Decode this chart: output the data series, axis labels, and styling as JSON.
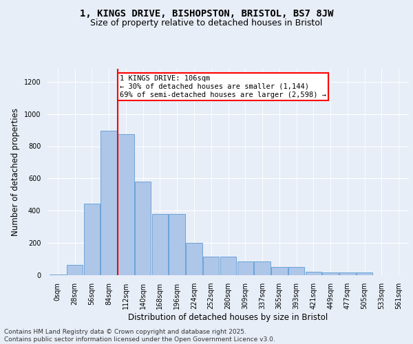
{
  "title_line1": "1, KINGS DRIVE, BISHOPSTON, BRISTOL, BS7 8JW",
  "title_line2": "Size of property relative to detached houses in Bristol",
  "xlabel": "Distribution of detached houses by size in Bristol",
  "ylabel": "Number of detached properties",
  "bar_labels": [
    "0sqm",
    "28sqm",
    "56sqm",
    "84sqm",
    "112sqm",
    "140sqm",
    "168sqm",
    "196sqm",
    "224sqm",
    "252sqm",
    "280sqm",
    "309sqm",
    "337sqm",
    "365sqm",
    "393sqm",
    "421sqm",
    "449sqm",
    "477sqm",
    "505sqm",
    "533sqm",
    "561sqm"
  ],
  "bar_values": [
    5,
    65,
    445,
    895,
    875,
    580,
    380,
    380,
    200,
    115,
    115,
    85,
    85,
    50,
    50,
    20,
    15,
    15,
    15,
    0,
    0
  ],
  "bar_color": "#aec6e8",
  "bar_edge_color": "#5b9bd5",
  "vline_x": 3.5,
  "vline_color": "red",
  "annotation_text": "1 KINGS DRIVE: 106sqm\n← 30% of detached houses are smaller (1,144)\n69% of semi-detached houses are larger (2,598) →",
  "annotation_box_color": "red",
  "annotation_box_facecolor": "white",
  "ylim": [
    0,
    1280
  ],
  "yticks": [
    0,
    200,
    400,
    600,
    800,
    1000,
    1200
  ],
  "background_color": "#e8eef7",
  "plot_bg_color": "#e8eef7",
  "footer_text": "Contains HM Land Registry data © Crown copyright and database right 2025.\nContains public sector information licensed under the Open Government Licence v3.0.",
  "title_fontsize": 10,
  "subtitle_fontsize": 9,
  "axis_label_fontsize": 8.5,
  "tick_fontsize": 7,
  "annotation_fontsize": 7.5,
  "footer_fontsize": 6.5
}
